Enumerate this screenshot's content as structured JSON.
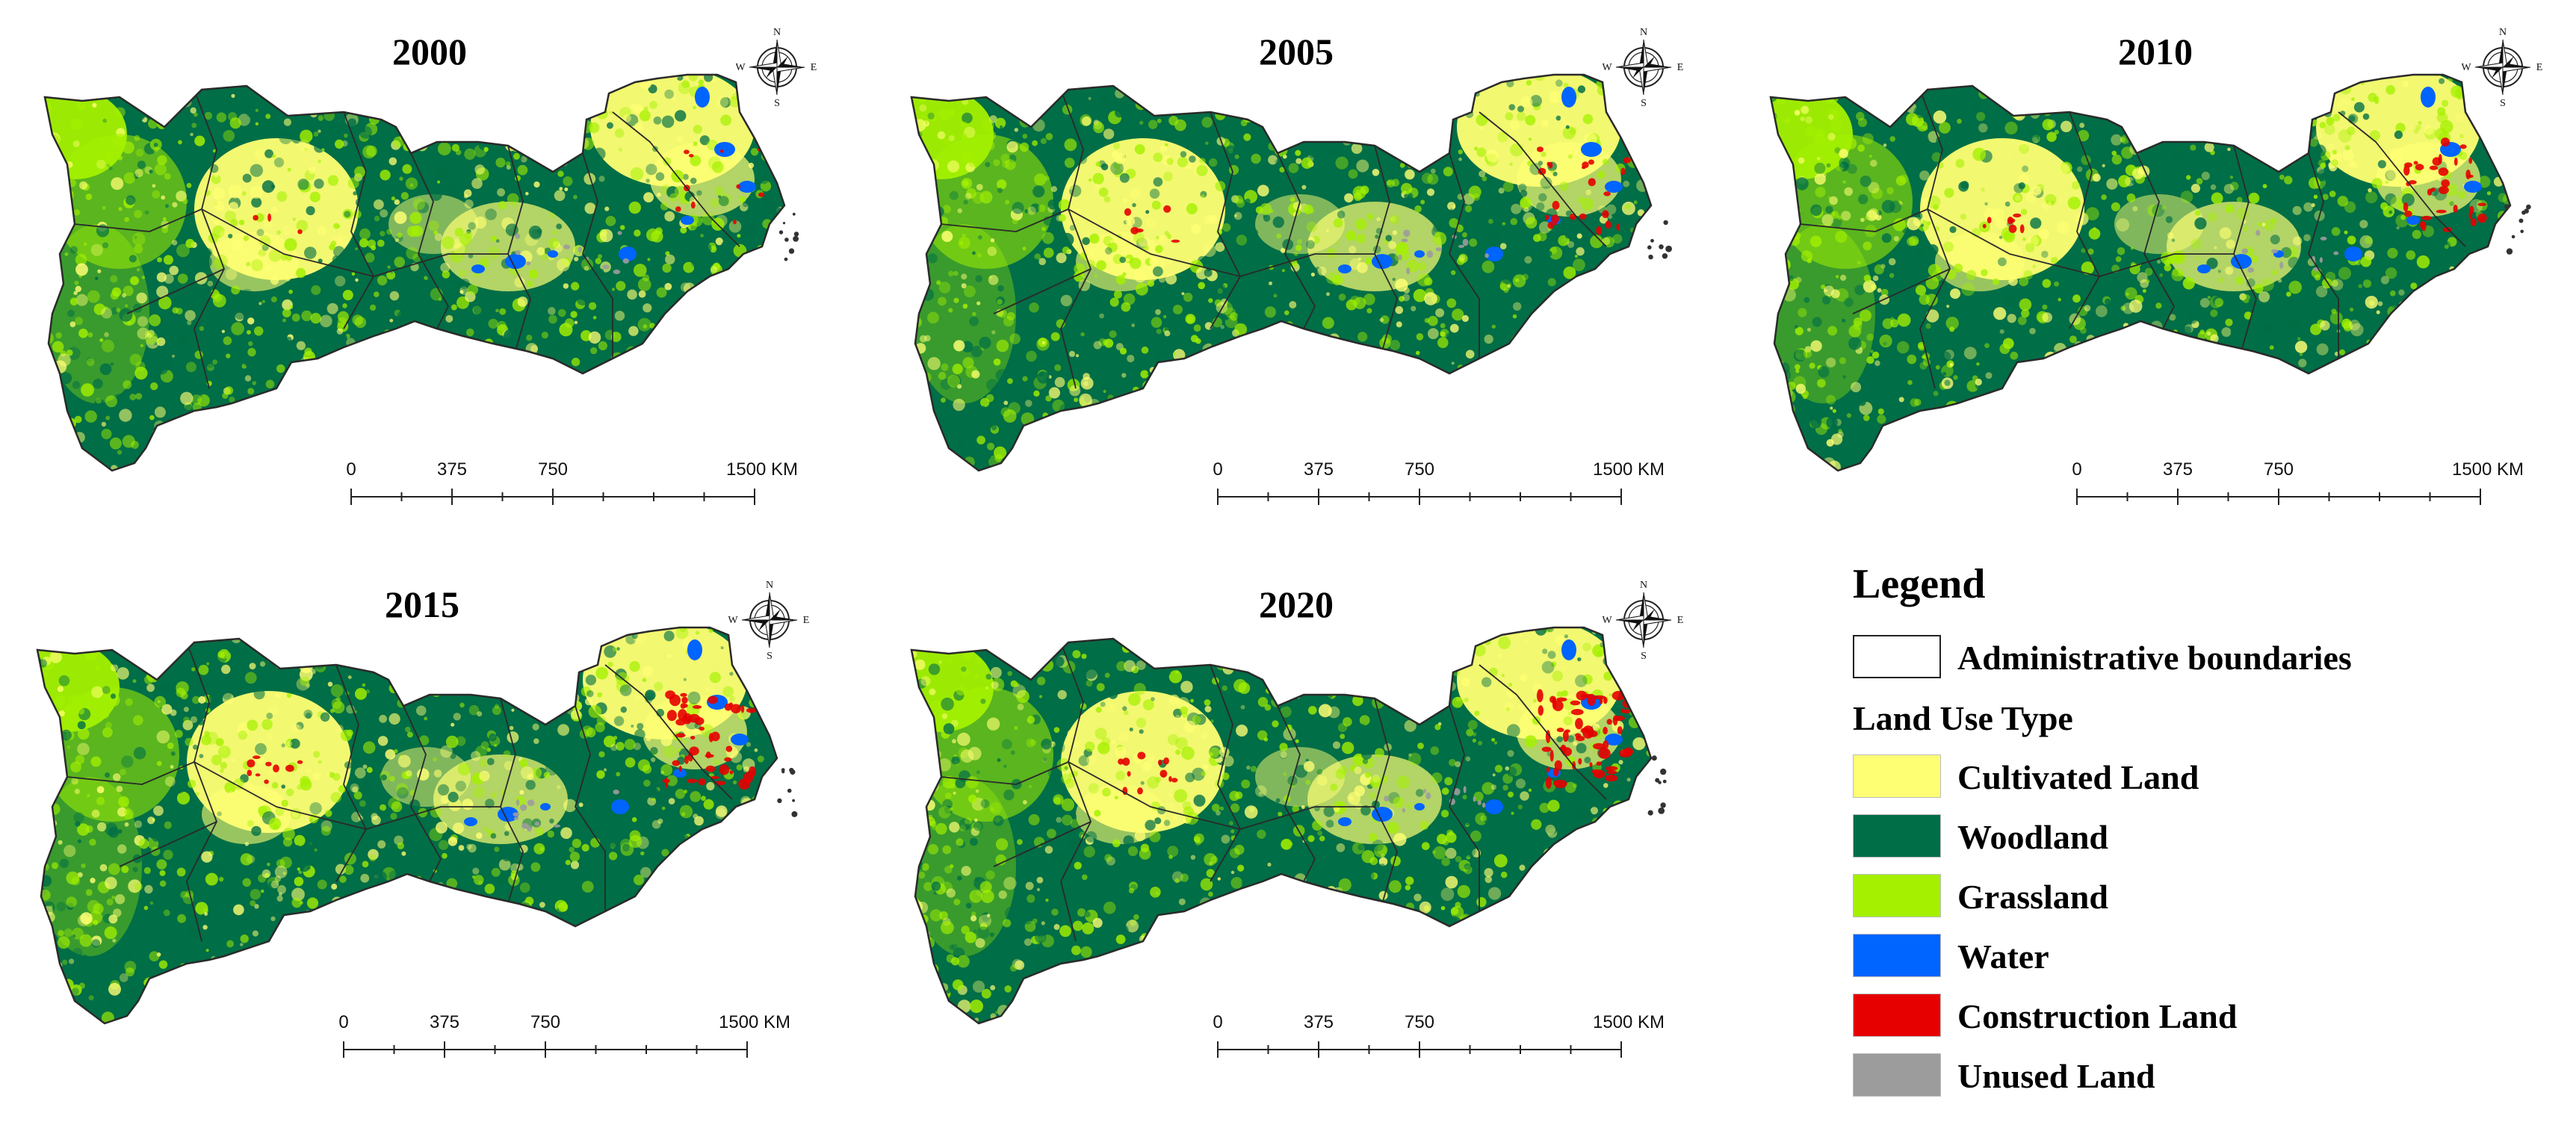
{
  "maps": [
    {
      "year": "2000",
      "compass": {
        "n": "N",
        "s": "S",
        "e": "E",
        "w": "W"
      },
      "scale": {
        "labels": [
          "0",
          "375",
          "750",
          "1500 KM"
        ]
      }
    },
    {
      "year": "2005",
      "compass": {
        "n": "N",
        "s": "S",
        "e": "E",
        "w": "W"
      },
      "scale": {
        "labels": [
          "0",
          "375",
          "750",
          "1500 KM"
        ]
      }
    },
    {
      "year": "2010",
      "compass": {
        "n": "N",
        "s": "S",
        "e": "E",
        "w": "W"
      },
      "scale": {
        "labels": [
          "0",
          "375",
          "750",
          "1500 KM"
        ]
      }
    },
    {
      "year": "2015",
      "compass": {
        "n": "N",
        "s": "S",
        "e": "E",
        "w": "W"
      },
      "scale": {
        "labels": [
          "0",
          "375",
          "750",
          "1500 KM"
        ]
      }
    },
    {
      "year": "2020",
      "compass": {
        "n": "N",
        "s": "S",
        "e": "E",
        "w": "W"
      },
      "scale": {
        "labels": [
          "0",
          "375",
          "750",
          "1500 KM"
        ]
      }
    }
  ],
  "legend": {
    "title": "Legend",
    "boundary_label": "Administrative boundaries",
    "subtitle": "Land Use Type",
    "classes": [
      {
        "label": "Cultivated Land",
        "color": "#ffff73"
      },
      {
        "label": "Woodland",
        "color": "#006e46"
      },
      {
        "label": "Grassland",
        "color": "#a4f000"
      },
      {
        "label": "Water",
        "color": "#0064ff"
      },
      {
        "label": "Construction Land",
        "color": "#e60000"
      },
      {
        "label": "Unused Land",
        "color": "#9c9c9c"
      }
    ]
  },
  "colors": {
    "boundary": "#2a2a2a",
    "cultivated": "#ffff73",
    "woodland": "#006e46",
    "grassland": "#a4f000",
    "water": "#0064ff",
    "construction": "#e60000",
    "unused": "#9c9c9c"
  }
}
